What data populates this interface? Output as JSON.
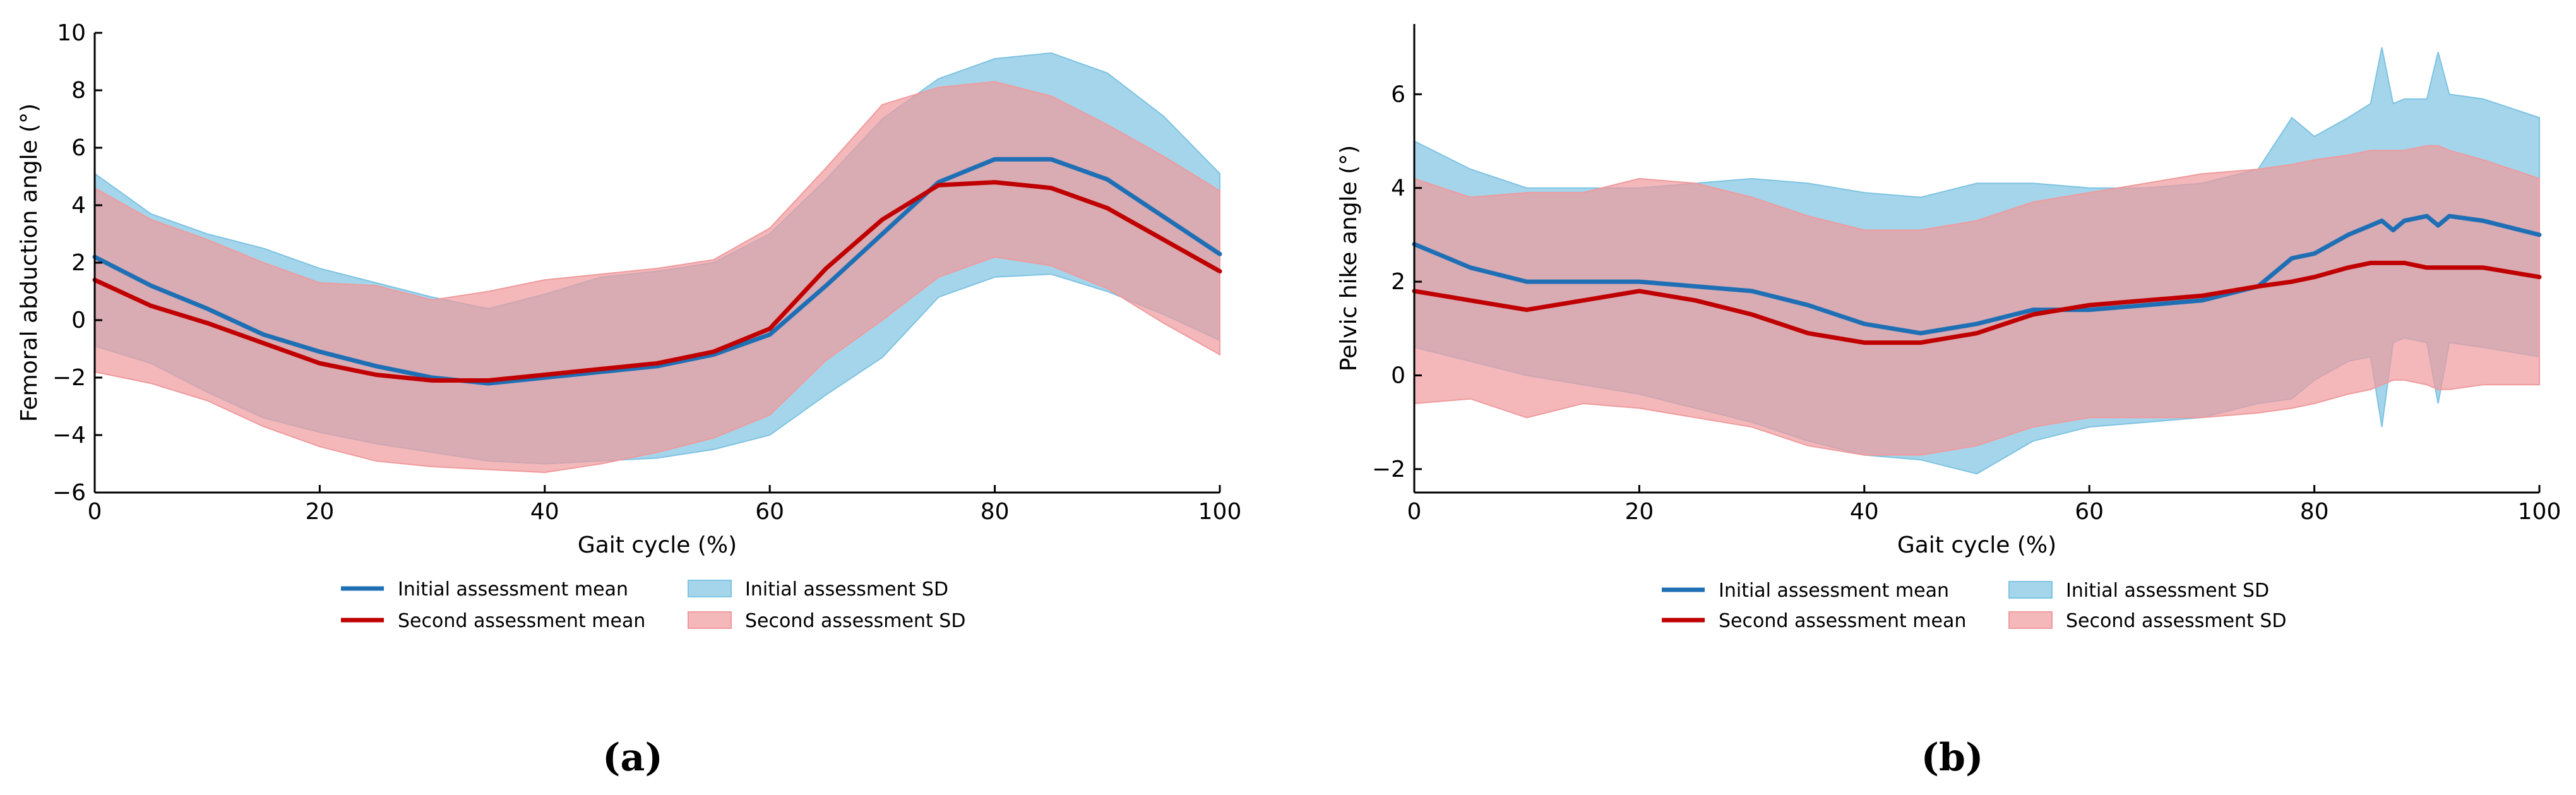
{
  "chart_data": [
    {
      "id": "a",
      "type": "line",
      "caption": "(a)",
      "xlabel": "Gait cycle (%)",
      "ylabel": "Femoral abduction angle (°)",
      "xlim": [
        0,
        100
      ],
      "ylim": [
        -6,
        10
      ],
      "xticks": [
        0,
        20,
        40,
        60,
        80,
        100
      ],
      "yticks": [
        -6,
        -4,
        -2,
        0,
        2,
        4,
        6,
        8,
        10
      ],
      "x": [
        0,
        5,
        10,
        15,
        20,
        25,
        30,
        35,
        40,
        45,
        50,
        55,
        60,
        65,
        70,
        75,
        80,
        85,
        90,
        95,
        100
      ],
      "series": [
        {
          "name": "Initial assessment mean",
          "kind": "line",
          "color": "#1f6fb5",
          "values": [
            2.2,
            1.2,
            0.4,
            -0.5,
            -1.1,
            -1.6,
            -2.0,
            -2.2,
            -2.0,
            -1.8,
            -1.6,
            -1.2,
            -0.5,
            1.2,
            3.0,
            4.8,
            5.6,
            5.6,
            4.9,
            3.6,
            2.3
          ]
        },
        {
          "name": "Second assessment mean",
          "kind": "line",
          "color": "#c00000",
          "values": [
            1.4,
            0.5,
            -0.1,
            -0.8,
            -1.5,
            -1.9,
            -2.1,
            -2.1,
            -1.9,
            -1.7,
            -1.5,
            -1.1,
            -0.3,
            1.8,
            3.5,
            4.7,
            4.8,
            4.6,
            3.9,
            2.8,
            1.7
          ]
        },
        {
          "name": "Initial assessment SD",
          "kind": "band",
          "color": "#7ec3e2",
          "upper": [
            5.1,
            3.7,
            3.0,
            2.5,
            1.8,
            1.3,
            0.8,
            0.4,
            0.9,
            1.5,
            1.7,
            2.0,
            3.0,
            4.9,
            7.0,
            8.4,
            9.1,
            9.3,
            8.6,
            7.1,
            5.1
          ],
          "lower": [
            -0.9,
            -1.5,
            -2.5,
            -3.4,
            -3.9,
            -4.3,
            -4.6,
            -4.9,
            -5.0,
            -4.9,
            -4.8,
            -4.5,
            -4.0,
            -2.6,
            -1.3,
            0.8,
            1.5,
            1.6,
            1.0,
            0.2,
            -0.7
          ]
        },
        {
          "name": "Second assessment SD",
          "kind": "band",
          "color": "#ef9a9c",
          "upper": [
            4.6,
            3.5,
            2.8,
            2.0,
            1.3,
            1.2,
            0.7,
            1.0,
            1.4,
            1.6,
            1.8,
            2.1,
            3.2,
            5.3,
            7.5,
            8.1,
            8.3,
            7.8,
            6.8,
            5.7,
            4.5
          ],
          "lower": [
            -1.8,
            -2.2,
            -2.8,
            -3.7,
            -4.4,
            -4.9,
            -5.1,
            -5.2,
            -5.3,
            -5.0,
            -4.6,
            -4.1,
            -3.3,
            -1.4,
            0.0,
            1.5,
            2.2,
            1.9,
            1.1,
            -0.1,
            -1.2
          ]
        }
      ],
      "legend": [
        {
          "label": "Initial assessment mean",
          "kind": "line",
          "color": "#1f6fb5"
        },
        {
          "label": "Second assessment mean",
          "kind": "line",
          "color": "#c00000"
        },
        {
          "label": "Initial assessment SD",
          "kind": "band",
          "color": "#7ec3e2"
        },
        {
          "label": "Second assessment SD",
          "kind": "band",
          "color": "#ef9a9c"
        }
      ],
      "legend_position": "bottom-center"
    },
    {
      "id": "b",
      "type": "line",
      "caption": "(b)",
      "xlabel": "Gait cycle (%)",
      "ylabel": "Pelvic hike angle (°)",
      "xlim": [
        0,
        100
      ],
      "ylim": [
        -2.5,
        7.5
      ],
      "xticks": [
        0,
        20,
        40,
        60,
        80,
        100
      ],
      "yticks": [
        -2,
        0,
        2,
        4,
        6
      ],
      "x": [
        0,
        5,
        10,
        15,
        20,
        25,
        30,
        35,
        40,
        45,
        50,
        55,
        60,
        65,
        70,
        75,
        78,
        80,
        83,
        85,
        86,
        87,
        88,
        90,
        91,
        92,
        95,
        100
      ],
      "series": [
        {
          "name": "Initial assessment mean",
          "kind": "line",
          "color": "#1f6fb5",
          "values": [
            2.8,
            2.3,
            2.0,
            2.0,
            2.0,
            1.9,
            1.8,
            1.5,
            1.1,
            0.9,
            1.1,
            1.4,
            1.4,
            1.5,
            1.6,
            1.9,
            2.5,
            2.6,
            3.0,
            3.2,
            3.3,
            3.1,
            3.3,
            3.4,
            3.2,
            3.4,
            3.3,
            3.0
          ]
        },
        {
          "name": "Second assessment mean",
          "kind": "line",
          "color": "#c00000",
          "values": [
            1.8,
            1.6,
            1.4,
            1.6,
            1.8,
            1.6,
            1.3,
            0.9,
            0.7,
            0.7,
            0.9,
            1.3,
            1.5,
            1.6,
            1.7,
            1.9,
            2.0,
            2.1,
            2.3,
            2.4,
            2.4,
            2.4,
            2.4,
            2.3,
            2.3,
            2.3,
            2.3,
            2.1
          ]
        },
        {
          "name": "Initial assessment SD",
          "kind": "band",
          "color": "#7ec3e2",
          "upper": [
            5.0,
            4.4,
            4.0,
            4.0,
            4.0,
            4.1,
            4.2,
            4.1,
            3.9,
            3.8,
            4.1,
            4.1,
            4.0,
            4.0,
            4.1,
            4.4,
            5.5,
            5.1,
            5.5,
            5.8,
            7.0,
            5.8,
            5.9,
            5.9,
            6.9,
            6.0,
            5.9,
            5.5
          ],
          "lower": [
            0.6,
            0.3,
            0.0,
            -0.2,
            -0.4,
            -0.7,
            -1.0,
            -1.4,
            -1.7,
            -1.8,
            -2.1,
            -1.4,
            -1.1,
            -1.0,
            -0.9,
            -0.6,
            -0.5,
            -0.1,
            0.3,
            0.4,
            -1.1,
            0.7,
            0.8,
            0.7,
            -0.6,
            0.7,
            0.6,
            0.4
          ]
        },
        {
          "name": "Second assessment SD",
          "kind": "band",
          "color": "#ef9a9c",
          "upper": [
            4.2,
            3.8,
            3.9,
            3.9,
            4.2,
            4.1,
            3.8,
            3.4,
            3.1,
            3.1,
            3.3,
            3.7,
            3.9,
            4.1,
            4.3,
            4.4,
            4.5,
            4.6,
            4.7,
            4.8,
            4.8,
            4.8,
            4.8,
            4.9,
            4.9,
            4.8,
            4.6,
            4.2
          ],
          "lower": [
            -0.6,
            -0.5,
            -0.9,
            -0.6,
            -0.7,
            -0.9,
            -1.1,
            -1.5,
            -1.7,
            -1.7,
            -1.5,
            -1.1,
            -0.9,
            -0.9,
            -0.9,
            -0.8,
            -0.7,
            -0.6,
            -0.4,
            -0.3,
            -0.2,
            -0.1,
            -0.1,
            -0.2,
            -0.3,
            -0.3,
            -0.2,
            -0.2
          ]
        }
      ],
      "legend": [
        {
          "label": "Initial assessment mean",
          "kind": "line",
          "color": "#1f6fb5"
        },
        {
          "label": "Second assessment mean",
          "kind": "line",
          "color": "#c00000"
        },
        {
          "label": "Initial assessment SD",
          "kind": "band",
          "color": "#7ec3e2"
        },
        {
          "label": "Second assessment SD",
          "kind": "band",
          "color": "#ef9a9c"
        }
      ],
      "legend_position": "bottom-center"
    }
  ]
}
